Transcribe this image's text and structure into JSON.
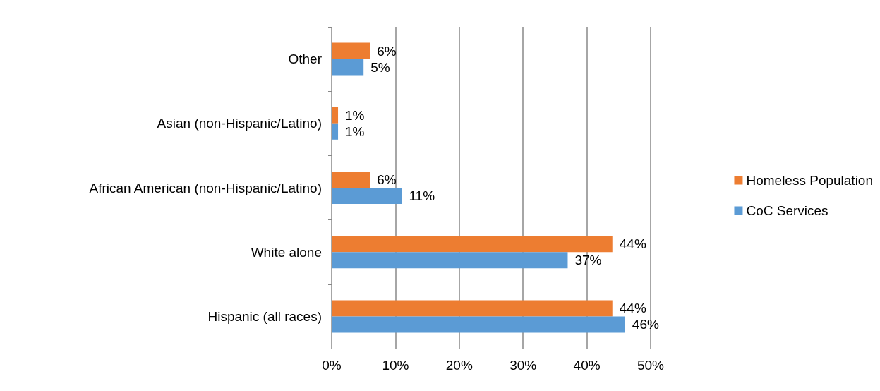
{
  "chart_data": {
    "type": "bar",
    "orientation": "horizontal",
    "categories": [
      "Other",
      "Asian (non-Hispanic/Latino)",
      "African American (non-Hispanic/Latino)",
      "White alone",
      "Hispanic (all races)"
    ],
    "series": [
      {
        "name": "Homeless Population",
        "color": "#ed7d31",
        "values": [
          6,
          1,
          6,
          44,
          44
        ],
        "value_labels": [
          "6%",
          "1%",
          "6%",
          "44%",
          "44%"
        ]
      },
      {
        "name": "CoC Services",
        "color": "#5b9bd5",
        "values": [
          5,
          1,
          11,
          37,
          46
        ],
        "value_labels": [
          "5%",
          "1%",
          "11%",
          "37%",
          "46%"
        ]
      }
    ],
    "xlim": [
      0,
      50
    ],
    "xticks": [
      {
        "value": 0,
        "label": "0%"
      },
      {
        "value": 10,
        "label": "10%"
      },
      {
        "value": 20,
        "label": "20%"
      },
      {
        "value": 30,
        "label": "30%"
      },
      {
        "value": 40,
        "label": "40%"
      },
      {
        "value": 50,
        "label": "50%"
      }
    ],
    "grid": "x",
    "legend": "right"
  }
}
